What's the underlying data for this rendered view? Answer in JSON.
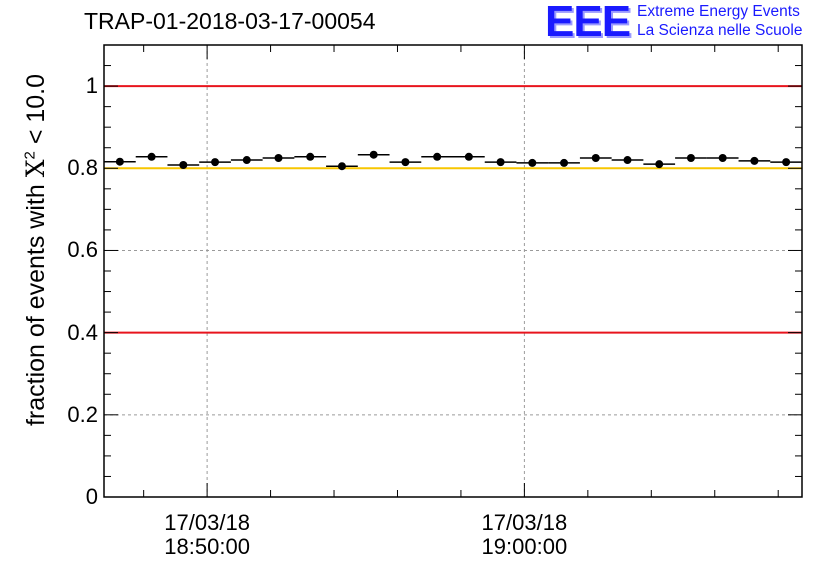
{
  "title": "TRAP-01-2018-03-17-00054",
  "logo": {
    "mark": "EEE",
    "line1": "Extreme Energy Events",
    "line2": "La Scienza nelle Scuole",
    "color": "#1a1aff"
  },
  "chart_data": {
    "type": "scatter",
    "ylabel_prefix": "fraction of events with ",
    "ylabel_symbol": "X",
    "ylabel_sup": "2",
    "ylabel_suffix": " < 10.0",
    "ylim": [
      0,
      1.1
    ],
    "yticks": [
      {
        "value": 0,
        "label": "0"
      },
      {
        "value": 0.2,
        "label": "0.2"
      },
      {
        "value": 0.4,
        "label": "0.4"
      },
      {
        "value": 0.6,
        "label": "0.6"
      },
      {
        "value": 0.8,
        "label": "0.8"
      },
      {
        "value": 1,
        "label": "1"
      }
    ],
    "xlim": [
      "18:46:45",
      "19:08:45"
    ],
    "xticks": [
      {
        "time": "18:50:00",
        "date": "17/03/18",
        "label": "18:50:00"
      },
      {
        "time": "19:00:00",
        "date": "17/03/18",
        "label": "19:00:00"
      }
    ],
    "grid": true,
    "reference_lines": [
      {
        "y": 1.0,
        "color": "#e8141d"
      },
      {
        "y": 0.8,
        "color": "#f7c600"
      },
      {
        "y": 0.4,
        "color": "#e8141d"
      }
    ],
    "point_bin_width_seconds": 60,
    "points": [
      {
        "x": "18:47:15",
        "y": 0.816
      },
      {
        "x": "18:48:15",
        "y": 0.828
      },
      {
        "x": "18:49:15",
        "y": 0.808
      },
      {
        "x": "18:50:15",
        "y": 0.815
      },
      {
        "x": "18:51:15",
        "y": 0.82
      },
      {
        "x": "18:52:15",
        "y": 0.825
      },
      {
        "x": "18:53:15",
        "y": 0.828
      },
      {
        "x": "18:54:15",
        "y": 0.805
      },
      {
        "x": "18:55:15",
        "y": 0.833
      },
      {
        "x": "18:56:15",
        "y": 0.815
      },
      {
        "x": "18:57:15",
        "y": 0.828
      },
      {
        "x": "18:58:15",
        "y": 0.828
      },
      {
        "x": "18:59:15",
        "y": 0.815
      },
      {
        "x": "19:00:15",
        "y": 0.813
      },
      {
        "x": "19:01:15",
        "y": 0.813
      },
      {
        "x": "19:02:15",
        "y": 0.825
      },
      {
        "x": "19:03:15",
        "y": 0.82
      },
      {
        "x": "19:04:15",
        "y": 0.81
      },
      {
        "x": "19:05:15",
        "y": 0.825
      },
      {
        "x": "19:06:15",
        "y": 0.825
      },
      {
        "x": "19:07:15",
        "y": 0.818
      },
      {
        "x": "19:08:15",
        "y": 0.815
      }
    ]
  }
}
